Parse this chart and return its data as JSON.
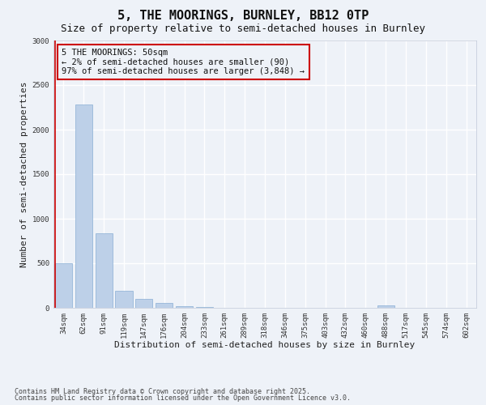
{
  "title_line1": "5, THE MOORINGS, BURNLEY, BB12 0TP",
  "title_line2": "Size of property relative to semi-detached houses in Burnley",
  "xlabel": "Distribution of semi-detached houses by size in Burnley",
  "ylabel": "Number of semi-detached properties",
  "categories": [
    "34sqm",
    "62sqm",
    "91sqm",
    "119sqm",
    "147sqm",
    "176sqm",
    "204sqm",
    "233sqm",
    "261sqm",
    "289sqm",
    "318sqm",
    "346sqm",
    "375sqm",
    "403sqm",
    "432sqm",
    "460sqm",
    "488sqm",
    "517sqm",
    "545sqm",
    "574sqm",
    "602sqm"
  ],
  "values": [
    500,
    2280,
    840,
    195,
    100,
    58,
    22,
    8,
    0,
    0,
    0,
    0,
    0,
    0,
    0,
    0,
    25,
    0,
    0,
    0,
    0
  ],
  "bar_color": "#bdd0e8",
  "bar_edge_color": "#8aafd4",
  "highlight_color": "#cc0000",
  "annotation_box_text": "5 THE MOORINGS: 50sqm\n← 2% of semi-detached houses are smaller (90)\n97% of semi-detached houses are larger (3,848) →",
  "annotation_box_color": "#cc0000",
  "ylim": [
    0,
    3000
  ],
  "yticks": [
    0,
    500,
    1000,
    1500,
    2000,
    2500,
    3000
  ],
  "background_color": "#eef2f8",
  "grid_color": "#ffffff",
  "footer_line1": "Contains HM Land Registry data © Crown copyright and database right 2025.",
  "footer_line2": "Contains public sector information licensed under the Open Government Licence v3.0.",
  "title_fontsize": 11,
  "subtitle_fontsize": 9,
  "axis_label_fontsize": 8,
  "tick_fontsize": 6.5,
  "annotation_fontsize": 7.5,
  "footer_fontsize": 6.0
}
